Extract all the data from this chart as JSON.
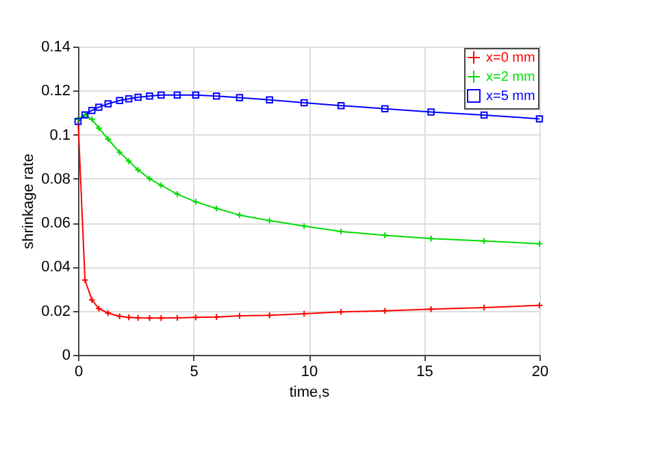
{
  "chart_data": {
    "type": "line",
    "xlabel": "time,s",
    "ylabel": "shrinkage rate",
    "xlim": [
      0,
      20
    ],
    "xticks": [
      0,
      5,
      10,
      15,
      20
    ],
    "ylim": [
      0,
      0.14
    ],
    "yticks": [
      0,
      0.02,
      0.04,
      0.06,
      0.08,
      0.1,
      0.12,
      0.14
    ],
    "grid": true,
    "legend": "top right",
    "line_style": "solid",
    "x": [
      0,
      0.3,
      0.6,
      0.9,
      1.3,
      1.8,
      2.2,
      2.6,
      3.1,
      3.6,
      4.3,
      5.1,
      6,
      7,
      8.3,
      9.8,
      11.4,
      13.3,
      15.3,
      17.6,
      20
    ],
    "series": [
      {
        "name": "x=0 mm",
        "color": "#ff0000",
        "marker": "cross",
        "values": [
          0.107,
          0.034,
          0.025,
          0.021,
          0.019,
          0.0175,
          0.017,
          0.0168,
          0.0167,
          0.0167,
          0.0168,
          0.017,
          0.0172,
          0.0177,
          0.018,
          0.0187,
          0.0195,
          0.02,
          0.0208,
          0.0215,
          0.0225
        ]
      },
      {
        "name": "x=2 mm",
        "color": "#00dd00",
        "marker": "cross",
        "values": [
          0.107,
          0.109,
          0.107,
          0.103,
          0.098,
          0.092,
          0.088,
          0.084,
          0.08,
          0.077,
          0.073,
          0.0695,
          0.0665,
          0.0635,
          0.061,
          0.0585,
          0.056,
          0.0543,
          0.0528,
          0.0517,
          0.0505
        ]
      },
      {
        "name": "x=5 mm",
        "color": "#0000ff",
        "marker": "square",
        "values": [
          0.106,
          0.109,
          0.111,
          0.1125,
          0.114,
          0.1155,
          0.1163,
          0.117,
          0.1175,
          0.118,
          0.118,
          0.118,
          0.1175,
          0.1168,
          0.1158,
          0.1145,
          0.1132,
          0.1118,
          0.1103,
          0.1089,
          0.1072
        ]
      }
    ]
  }
}
